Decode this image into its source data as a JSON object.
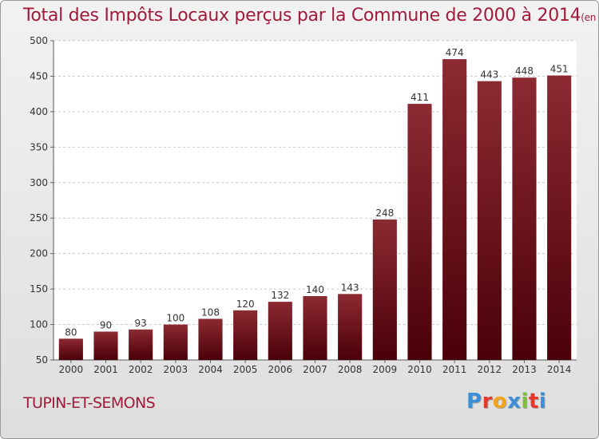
{
  "title": "Total des Impôts Locaux perçus par la Commune de 2000 à 2014",
  "title_unit": "(en milliers d'€)",
  "commune": "TUPIN-ET-SEMONS",
  "logo_letters": [
    "P",
    "r",
    "o",
    "x",
    "i",
    "t",
    "i"
  ],
  "logo_colors": [
    "#3a8fd8",
    "#e2392a",
    "#f2a21b",
    "#3a8fd8",
    "#7bbf3a",
    "#e2392a",
    "#3a8fd8"
  ],
  "colors": {
    "bar_top": "#8c2a32",
    "bar_bottom": "#4a0008",
    "accent": "#a01a3a"
  },
  "chart_data": {
    "type": "bar",
    "categories": [
      "2000",
      "2001",
      "2002",
      "2003",
      "2004",
      "2005",
      "2006",
      "2007",
      "2008",
      "2009",
      "2010",
      "2011",
      "2012",
      "2013",
      "2014"
    ],
    "values": [
      80,
      90,
      93,
      100,
      108,
      120,
      132,
      140,
      143,
      248,
      411,
      474,
      443,
      448,
      451
    ],
    "yticks": [
      50,
      100,
      150,
      200,
      250,
      300,
      350,
      400,
      450,
      500
    ],
    "ylim": [
      50,
      500
    ],
    "grid": true,
    "legend": "none"
  }
}
